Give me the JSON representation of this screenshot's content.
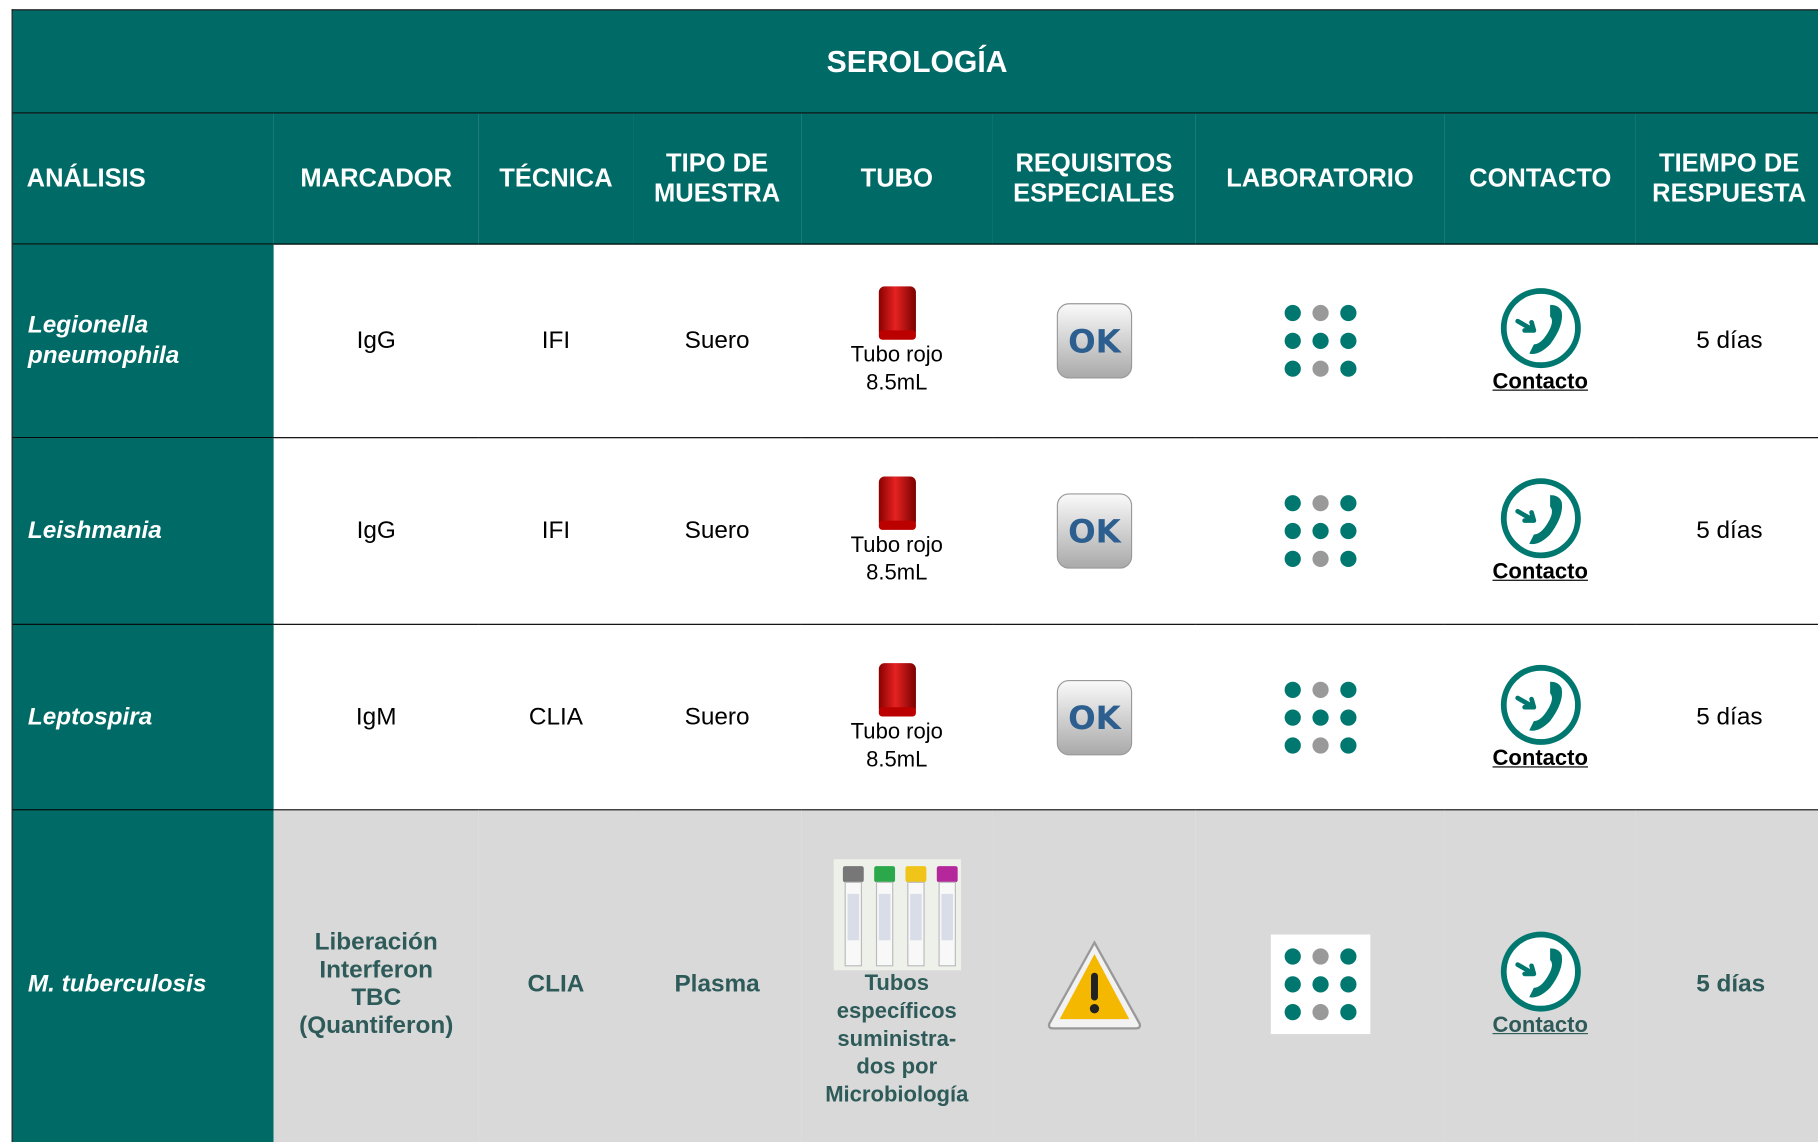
{
  "header": {
    "title": "SEROLOGÍA",
    "columns": [
      "ANÁLISIS",
      "MARCADOR",
      "TÉCNICA",
      "TIPO DE\nMUESTRA",
      "TUBO",
      "REQUISITOS\nESPECIALES",
      "LABORATORIO",
      "CONTACTO",
      "TIEMPO DE\nRESPUESTA"
    ]
  },
  "rows": [
    {
      "analisis": "Legionella\npneumophila",
      "marcador": "IgG",
      "tecnica": "IFI",
      "muestra": "Suero",
      "tubo": "Tubo rojo\n8.5mL",
      "contacto": "Contacto",
      "tiempo": "5 días"
    },
    {
      "analisis": "Leishmania",
      "marcador": "IgG",
      "tecnica": "IFI",
      "muestra": "Suero",
      "tubo": "Tubo rojo\n8.5mL",
      "contacto": "Contacto",
      "tiempo": "5 días"
    },
    {
      "analisis": "Leptospira",
      "marcador": "IgM",
      "tecnica": "CLIA",
      "muestra": "Suero",
      "tubo": "Tubo rojo\n8.5mL",
      "contacto": "Contacto",
      "tiempo": "5 días"
    },
    {
      "analisis": "M. tuberculosis",
      "marcador": "Liberación\nInterferon\nTBC\n(Quantiferon)",
      "tecnica": "CLIA",
      "muestra": "Plasma",
      "tubo": "Tubos\nespecíficos\nsuministra-\ndos por\nMicrobiología",
      "contacto": "Contacto",
      "tiempo": "5 días"
    }
  ]
}
